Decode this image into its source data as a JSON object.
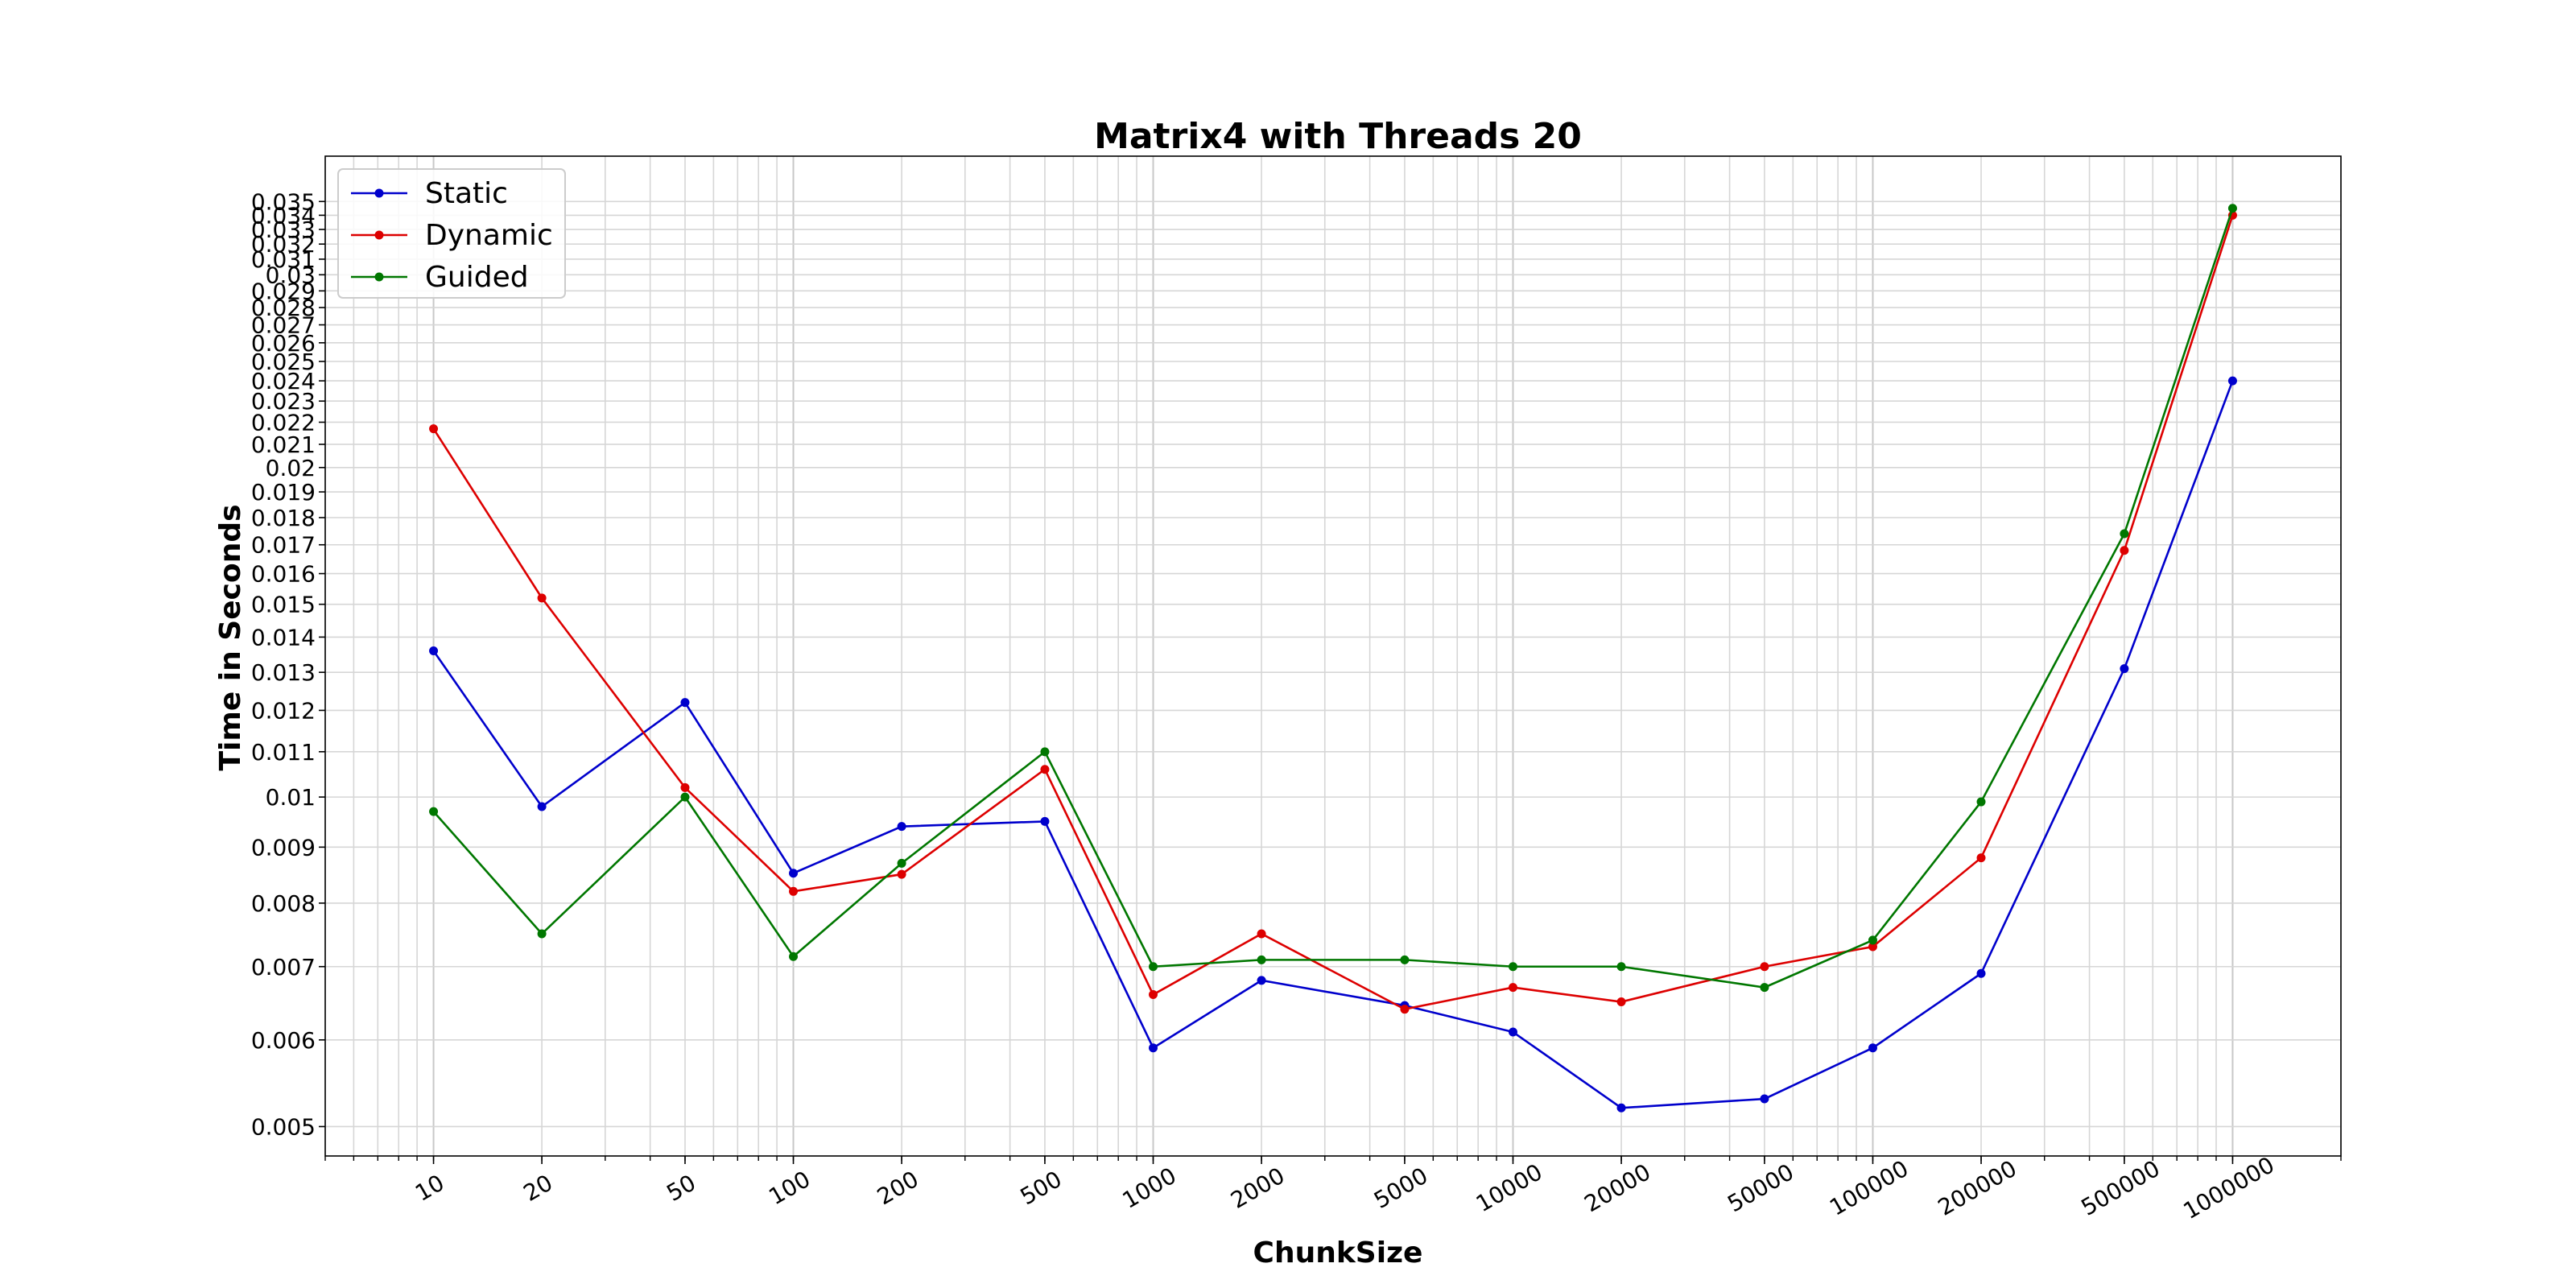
{
  "chart_data": {
    "type": "line",
    "title": "Matrix4 with Threads 20",
    "xlabel": "ChunkSize",
    "ylabel": "Time in Seconds",
    "x_scale": "log",
    "y_scale": "log",
    "x": [
      10,
      20,
      50,
      100,
      200,
      500,
      1000,
      2000,
      5000,
      10000,
      20000,
      50000,
      100000,
      200000,
      500000,
      1000000
    ],
    "x_tick_labels": [
      "10",
      "20",
      "50",
      "100",
      "200",
      "500",
      "1000",
      "2000",
      "5000",
      "10000",
      "20000",
      "50000",
      "100000",
      "200000",
      "500000",
      "1000000"
    ],
    "xlim": [
      5,
      2000000
    ],
    "ylim": [
      0.0047,
      0.0385
    ],
    "y_ticks": [
      0.005,
      0.006,
      0.007,
      0.008,
      0.009,
      0.01,
      0.011,
      0.012,
      0.013,
      0.014,
      0.015,
      0.016,
      0.017,
      0.018,
      0.019,
      0.02,
      0.021,
      0.022,
      0.023,
      0.024,
      0.025,
      0.026,
      0.027,
      0.028,
      0.029,
      0.03,
      0.031,
      0.032,
      0.033,
      0.034,
      0.035
    ],
    "y_tick_labels": [
      "0.005",
      "0.006",
      "0.007",
      "0.008",
      "0.009",
      "0.01",
      "0.011",
      "0.012",
      "0.013",
      "0.014",
      "0.015",
      "0.016",
      "0.017",
      "0.018",
      "0.019",
      "0.02",
      "0.021",
      "0.022",
      "0.023",
      "0.024",
      "0.025",
      "0.026",
      "0.027",
      "0.028",
      "0.029",
      "0.03",
      "0.031",
      "0.032",
      "0.033",
      "0.034",
      "0.035"
    ],
    "grid": true,
    "legend_position": "top-left",
    "series": [
      {
        "name": "Static",
        "color": "#0000cc",
        "values": [
          0.0136,
          0.0098,
          0.0122,
          0.00852,
          0.0094,
          0.0095,
          0.0059,
          0.0068,
          0.00645,
          0.0061,
          0.0052,
          0.0053,
          0.0059,
          0.0069,
          0.0131,
          0.024
        ]
      },
      {
        "name": "Dynamic",
        "color": "#dd0000",
        "values": [
          0.0217,
          0.0152,
          0.0102,
          0.0082,
          0.0085,
          0.0106,
          0.0066,
          0.0075,
          0.0064,
          0.0067,
          0.0065,
          0.007,
          0.0073,
          0.0088,
          0.0168,
          0.034
        ]
      },
      {
        "name": "Guided",
        "color": "#007700",
        "values": [
          0.0097,
          0.0075,
          0.01,
          0.00715,
          0.0087,
          0.011,
          0.007,
          0.0071,
          0.0071,
          0.007,
          0.007,
          0.0067,
          0.0074,
          0.0099,
          0.0174,
          0.0345
        ]
      }
    ]
  }
}
